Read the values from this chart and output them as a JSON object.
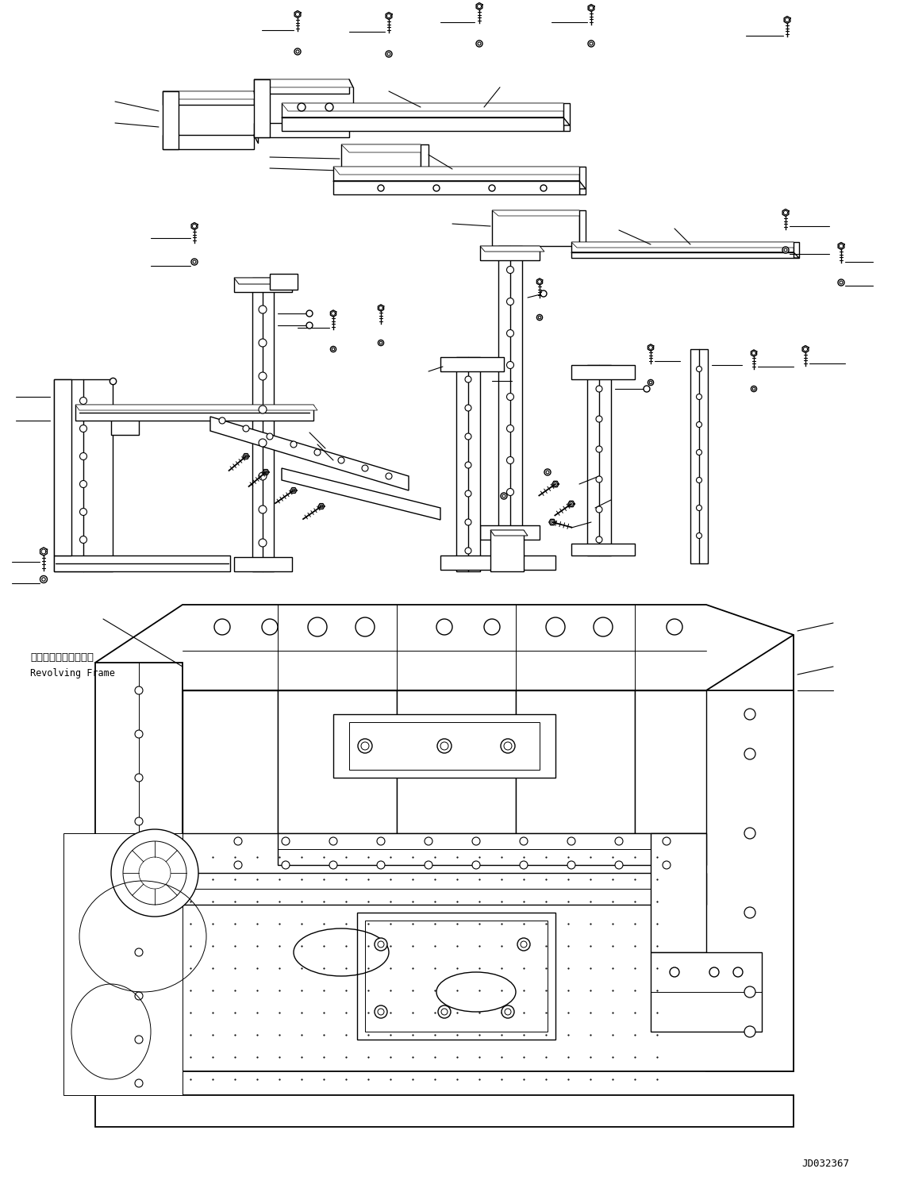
{
  "part_code": "JD032367",
  "label_revolving_frame_jp": "レボルビングフレーム",
  "label_revolving_frame_en": "Revolving Frame",
  "bg_color": "#ffffff",
  "line_color": "#000000",
  "lw": 1.0,
  "fig_width": 11.43,
  "fig_height": 14.92,
  "dpi": 100
}
